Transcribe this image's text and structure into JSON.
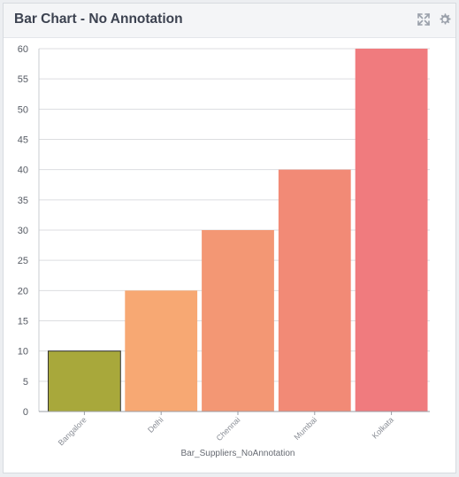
{
  "header": {
    "title": "Bar Chart - No Annotation",
    "icons": [
      "expand-icon",
      "gear-icon"
    ]
  },
  "chart_data": {
    "type": "bar",
    "title": "Bar Chart - No Annotation",
    "xlabel": "Bar_Suppliers_NoAnnotation",
    "ylabel": "",
    "categories": [
      "Bangalore",
      "Delhi",
      "Chennai",
      "Mumbai",
      "Kolkata"
    ],
    "values": [
      10,
      20,
      30,
      40,
      60
    ],
    "ylim": [
      0,
      60
    ],
    "yticks": [
      0,
      5,
      10,
      15,
      20,
      25,
      30,
      35,
      40,
      45,
      50,
      55,
      60
    ],
    "grid": true,
    "legend": "none",
    "colors": [
      "#a8a83b",
      "#f7a873",
      "#f39774",
      "#f28a76",
      "#f07b7e"
    ],
    "highlighted_bar_border": "#333333"
  }
}
